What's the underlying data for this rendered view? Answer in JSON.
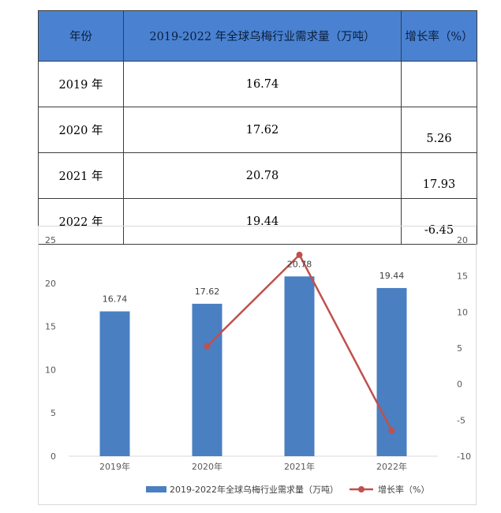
{
  "table": {
    "headers": [
      "年份",
      "2019-2022 年全球乌梅行业需求量（万吨）",
      "增长率（%）"
    ],
    "rows": [
      {
        "year": "2019 年",
        "demand": "16.74",
        "growth": ""
      },
      {
        "year": "2020 年",
        "demand": "17.62",
        "growth": "5.26"
      },
      {
        "year": "2021 年",
        "demand": "20.78",
        "growth": "17.93"
      },
      {
        "year": "2022 年",
        "demand": "19.44",
        "growth": "-6.45"
      }
    ]
  },
  "chart_data": {
    "type": "bar",
    "categories": [
      "2019年",
      "2020年",
      "2021年",
      "2022年"
    ],
    "series": [
      {
        "name": "2019-2022年全球乌梅行业需求量（万吨）",
        "type": "bar",
        "axis": "left",
        "values": [
          16.74,
          17.62,
          20.78,
          19.44
        ],
        "data_labels": [
          "16.74",
          "17.62",
          "20.78",
          "19.44"
        ]
      },
      {
        "name": "增长率（%）",
        "type": "line",
        "axis": "right",
        "values": [
          null,
          5.26,
          17.93,
          -6.45
        ]
      }
    ],
    "ylim": [
      0,
      25
    ],
    "y_ticks": [
      "0",
      "5",
      "10",
      "15",
      "20",
      "25"
    ],
    "y2lim": [
      -10,
      20
    ],
    "y2_ticks": [
      "-10",
      "-5",
      "0",
      "5",
      "10",
      "15",
      "20"
    ],
    "grid": false,
    "legend_position": "bottom",
    "colors": {
      "bar": "#4a7fc1",
      "line": "#c0504d"
    }
  }
}
